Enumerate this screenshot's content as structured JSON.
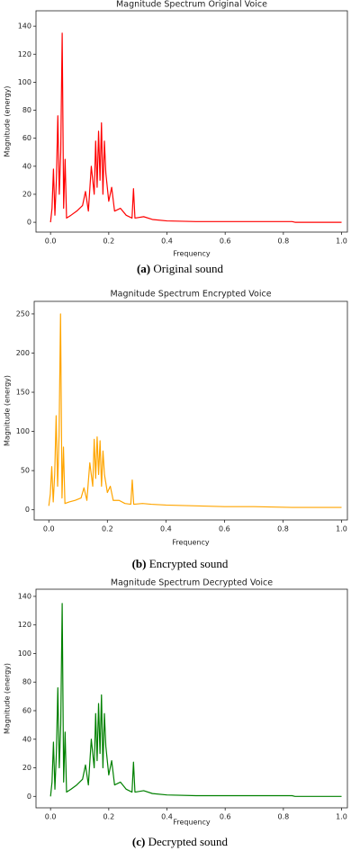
{
  "chart_data": [
    {
      "type": "line",
      "title": "Magnitude Spectrum Original Voice",
      "xlabel": "Frequency",
      "ylabel": "Magnitude (energy)",
      "caption_label": "(a)",
      "caption": "Original sound",
      "color": "#ff0000",
      "x": [
        0.0,
        0.005,
        0.01,
        0.015,
        0.02,
        0.025,
        0.03,
        0.035,
        0.04,
        0.045,
        0.05,
        0.055,
        0.07,
        0.09,
        0.11,
        0.12,
        0.13,
        0.14,
        0.15,
        0.155,
        0.16,
        0.165,
        0.17,
        0.175,
        0.18,
        0.185,
        0.19,
        0.2,
        0.21,
        0.22,
        0.24,
        0.26,
        0.28,
        0.285,
        0.29,
        0.32,
        0.35,
        0.4,
        0.5,
        0.6,
        0.7,
        0.83,
        0.84,
        1.0
      ],
      "values": [
        0,
        10,
        38,
        5,
        30,
        76,
        20,
        50,
        135,
        10,
        45,
        3,
        5,
        8,
        12,
        22,
        8,
        40,
        20,
        58,
        25,
        65,
        30,
        71,
        20,
        58,
        35,
        15,
        25,
        8,
        10,
        5,
        3,
        24,
        3,
        4,
        2,
        1,
        0.5,
        0.5,
        0.5,
        0.5,
        0,
        0
      ],
      "xlim": [
        -0.05,
        1.02
      ],
      "ylim": [
        -7,
        151
      ],
      "xticks": [
        {
          "value": 0,
          "label": "0.0"
        },
        0.2,
        0.4,
        0.6,
        0.8,
        {
          "value": 1,
          "label": "1.0"
        }
      ],
      "yticks": [
        0,
        20,
        40,
        60,
        80,
        100,
        120,
        140
      ]
    },
    {
      "type": "line",
      "title": "Magnitude Spectrum Encrypted Voice",
      "xlabel": "Frequency",
      "ylabel": "Magnitude (energy)",
      "caption_label": "(b)",
      "caption": "Encrypted sound",
      "color": "#ffa500",
      "x": [
        0.0,
        0.005,
        0.01,
        0.015,
        0.02,
        0.025,
        0.03,
        0.035,
        0.04,
        0.045,
        0.05,
        0.055,
        0.07,
        0.09,
        0.11,
        0.12,
        0.13,
        0.14,
        0.15,
        0.155,
        0.16,
        0.165,
        0.17,
        0.175,
        0.18,
        0.185,
        0.19,
        0.2,
        0.21,
        0.22,
        0.24,
        0.26,
        0.28,
        0.285,
        0.29,
        0.32,
        0.35,
        0.4,
        0.5,
        0.6,
        0.7,
        0.83,
        0.84,
        1.0
      ],
      "values": [
        5,
        20,
        55,
        10,
        45,
        120,
        30,
        95,
        250,
        15,
        80,
        8,
        10,
        12,
        15,
        28,
        12,
        60,
        30,
        90,
        40,
        93,
        45,
        88,
        30,
        75,
        45,
        22,
        30,
        12,
        12,
        8,
        7,
        38,
        7,
        8,
        7,
        6,
        5,
        4,
        4,
        3,
        3,
        3
      ],
      "xlim": [
        -0.05,
        1.02
      ],
      "ylim": [
        -13,
        266
      ],
      "xticks": [
        {
          "value": 0,
          "label": "0.0"
        },
        0.2,
        0.4,
        0.6,
        0.8,
        {
          "value": 1,
          "label": "1.0"
        }
      ],
      "yticks": [
        0,
        50,
        100,
        150,
        200,
        250
      ]
    },
    {
      "type": "line",
      "title": "Magnitude Spectrum Decrypted Voice",
      "xlabel": "Frequency",
      "ylabel": "Magnitude (energy)",
      "caption_label": "(c)",
      "caption": "Decrypted sound",
      "color": "#008000",
      "x": [
        0.0,
        0.005,
        0.01,
        0.015,
        0.02,
        0.025,
        0.03,
        0.035,
        0.04,
        0.045,
        0.05,
        0.055,
        0.07,
        0.09,
        0.11,
        0.12,
        0.13,
        0.14,
        0.15,
        0.155,
        0.16,
        0.165,
        0.17,
        0.175,
        0.18,
        0.185,
        0.19,
        0.2,
        0.21,
        0.22,
        0.24,
        0.26,
        0.28,
        0.285,
        0.29,
        0.32,
        0.35,
        0.4,
        0.5,
        0.6,
        0.7,
        0.83,
        0.84,
        1.0
      ],
      "values": [
        0,
        10,
        38,
        5,
        30,
        76,
        20,
        50,
        135,
        10,
        45,
        3,
        5,
        8,
        12,
        22,
        8,
        40,
        20,
        58,
        25,
        65,
        30,
        71,
        20,
        58,
        35,
        15,
        25,
        8,
        10,
        5,
        3,
        24,
        3,
        4,
        2,
        1,
        0.5,
        0.5,
        0.5,
        0.5,
        0,
        0
      ],
      "xlim": [
        -0.05,
        1.02
      ],
      "ylim": [
        -8,
        145
      ],
      "xticks": [
        {
          "value": 0,
          "label": "0.0"
        },
        0.2,
        0.4,
        0.6,
        0.8,
        {
          "value": 1,
          "label": "1.0"
        }
      ],
      "yticks": [
        0,
        20,
        40,
        60,
        80,
        100,
        120,
        140
      ]
    }
  ]
}
